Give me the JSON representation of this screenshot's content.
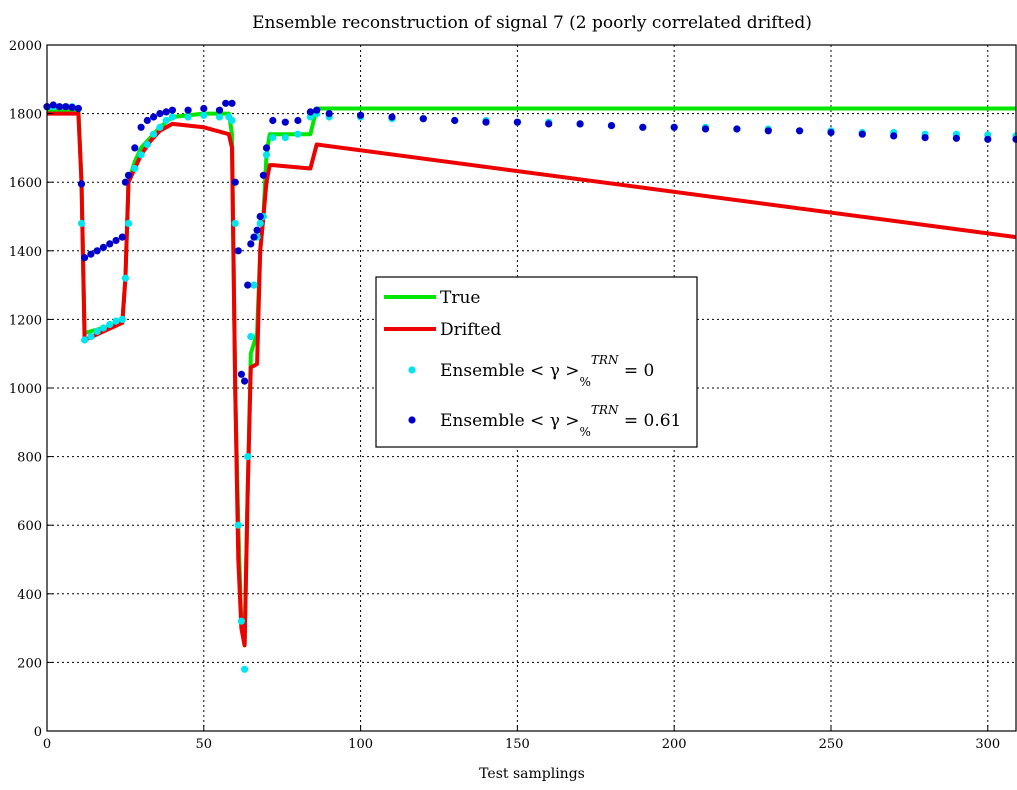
{
  "chart_data": {
    "type": "line",
    "title": "Ensemble reconstruction of signal 7 (2 poorly correlated drifted)",
    "xlabel": "Test samplings",
    "ylabel": "",
    "xlim": [
      0,
      309
    ],
    "ylim": [
      0,
      2000
    ],
    "xticks": [
      0,
      50,
      100,
      150,
      200,
      250,
      300
    ],
    "yticks": [
      0,
      200,
      400,
      600,
      800,
      1000,
      1200,
      1400,
      1600,
      1800,
      2000
    ],
    "grid": true,
    "legend_position": "center",
    "series": [
      {
        "name": "True",
        "kind": "line",
        "color": "#00e600",
        "x": [
          0,
          10,
          11,
          12,
          24,
          25,
          26,
          28,
          30,
          33,
          36,
          40,
          50,
          58,
          59,
          60,
          61,
          62,
          63,
          64,
          65,
          67,
          68,
          69,
          70,
          71,
          72,
          84,
          86,
          309
        ],
        "y": [
          1810,
          1810,
          1600,
          1160,
          1190,
          1320,
          1600,
          1660,
          1700,
          1730,
          1760,
          1790,
          1800,
          1800,
          1740,
          1000,
          600,
          300,
          250,
          700,
          1100,
          1160,
          1400,
          1500,
          1680,
          1740,
          1740,
          1740,
          1815,
          1815
        ]
      },
      {
        "name": "Drifted",
        "kind": "line",
        "color": "#ee0000",
        "x": [
          0,
          10,
          11,
          12,
          24,
          25,
          26,
          28,
          30,
          33,
          36,
          40,
          50,
          58,
          59,
          60,
          61,
          62,
          63,
          64,
          65,
          67,
          68,
          69,
          70,
          71,
          72,
          84,
          86,
          309
        ],
        "y": [
          1800,
          1800,
          1600,
          1140,
          1190,
          1320,
          1600,
          1640,
          1680,
          1720,
          1750,
          1770,
          1760,
          1740,
          1700,
          1000,
          500,
          300,
          250,
          700,
          1060,
          1070,
          1400,
          1500,
          1600,
          1650,
          1650,
          1640,
          1710,
          1440
        ]
      },
      {
        "name": "Ensemble <γ>%TRN = 0",
        "kind": "scatter",
        "color": "#00e5ee",
        "x": [
          0,
          2,
          4,
          6,
          8,
          10,
          11,
          12,
          14,
          16,
          18,
          20,
          22,
          24,
          25,
          26,
          28,
          30,
          32,
          34,
          36,
          38,
          40,
          45,
          50,
          55,
          58,
          59,
          60,
          61,
          62,
          63,
          64,
          65,
          66,
          67,
          68,
          69,
          70,
          72,
          76,
          80,
          84,
          86,
          90,
          100,
          110,
          120,
          130,
          140,
          150,
          160,
          170,
          180,
          190,
          200,
          210,
          220,
          230,
          240,
          250,
          260,
          270,
          280,
          290,
          300,
          309
        ],
        "y": [
          1820,
          1820,
          1820,
          1820,
          1820,
          1815,
          1480,
          1140,
          1150,
          1165,
          1175,
          1185,
          1195,
          1200,
          1320,
          1480,
          1640,
          1680,
          1710,
          1740,
          1760,
          1780,
          1790,
          1790,
          1795,
          1790,
          1790,
          1780,
          1480,
          600,
          320,
          180,
          800,
          1150,
          1300,
          1440,
          1480,
          1500,
          1680,
          1730,
          1730,
          1740,
          1790,
          1800,
          1790,
          1790,
          1785,
          1785,
          1780,
          1780,
          1775,
          1775,
          1770,
          1765,
          1760,
          1760,
          1760,
          1755,
          1755,
          1750,
          1750,
          1745,
          1745,
          1740,
          1740,
          1738,
          1735
        ]
      },
      {
        "name": "Ensemble <γ>%TRN = 0.61",
        "kind": "scatter",
        "color": "#0000cd",
        "x": [
          0,
          2,
          4,
          6,
          8,
          10,
          11,
          12,
          14,
          16,
          18,
          20,
          22,
          24,
          25,
          26,
          28,
          30,
          32,
          34,
          36,
          38,
          40,
          45,
          50,
          55,
          57,
          59,
          60,
          61,
          62,
          63,
          64,
          65,
          66,
          67,
          68,
          69,
          70,
          72,
          76,
          80,
          84,
          86,
          90,
          100,
          110,
          120,
          130,
          140,
          150,
          160,
          170,
          180,
          190,
          200,
          210,
          220,
          230,
          240,
          250,
          260,
          270,
          280,
          290,
          300,
          309
        ],
        "y": [
          1820,
          1825,
          1820,
          1820,
          1818,
          1815,
          1595,
          1380,
          1390,
          1400,
          1410,
          1420,
          1430,
          1440,
          1600,
          1620,
          1700,
          1760,
          1780,
          1790,
          1800,
          1805,
          1810,
          1810,
          1815,
          1810,
          1830,
          1830,
          1600,
          1400,
          1040,
          1020,
          1300,
          1420,
          1440,
          1460,
          1500,
          1620,
          1700,
          1780,
          1775,
          1780,
          1805,
          1810,
          1800,
          1795,
          1790,
          1785,
          1780,
          1775,
          1775,
          1770,
          1770,
          1765,
          1760,
          1760,
          1755,
          1755,
          1750,
          1750,
          1745,
          1740,
          1735,
          1730,
          1728,
          1725,
          1725
        ]
      }
    ]
  }
}
